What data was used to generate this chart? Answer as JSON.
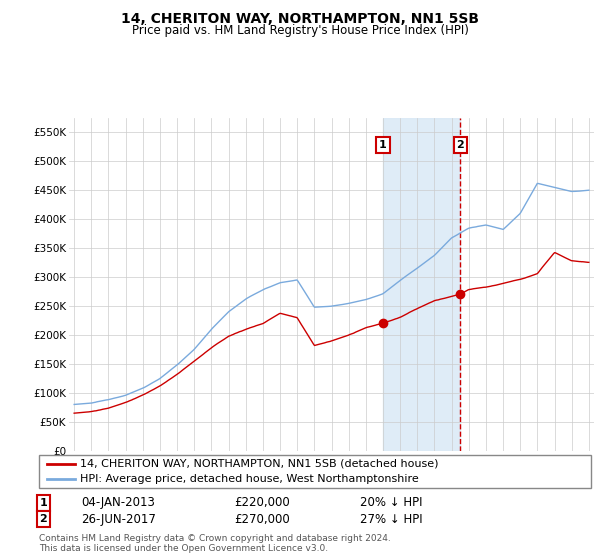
{
  "title": "14, CHERITON WAY, NORTHAMPTON, NN1 5SB",
  "subtitle": "Price paid vs. HM Land Registry's House Price Index (HPI)",
  "ylabel_ticks": [
    "£0",
    "£50K",
    "£100K",
    "£150K",
    "£200K",
    "£250K",
    "£300K",
    "£350K",
    "£400K",
    "£450K",
    "£500K",
    "£550K"
  ],
  "ytick_values": [
    0,
    50000,
    100000,
    150000,
    200000,
    250000,
    300000,
    350000,
    400000,
    450000,
    500000,
    550000
  ],
  "xlim_start": 1994.7,
  "xlim_end": 2025.3,
  "ylim_top": 575000,
  "transaction1": {
    "date_label": "04-JAN-2013",
    "price": 220000,
    "pct": "20%",
    "x": 2013.0
  },
  "transaction2": {
    "date_label": "26-JUN-2017",
    "price": 270000,
    "pct": "27%",
    "x": 2017.5
  },
  "red_line_label": "14, CHERITON WAY, NORTHAMPTON, NN1 5SB (detached house)",
  "blue_line_label": "HPI: Average price, detached house, West Northamptonshire",
  "footer1": "Contains HM Land Registry data © Crown copyright and database right 2024.",
  "footer2": "This data is licensed under the Open Government Licence v3.0.",
  "red_color": "#cc0000",
  "blue_color": "#7aaadd",
  "shade_color": "#d8e8f5",
  "background_color": "#ffffff",
  "grid_color": "#cccccc",
  "title_fontsize": 10,
  "subtitle_fontsize": 8.5,
  "tick_fontsize": 7.5,
  "legend_fontsize": 8,
  "footer_fontsize": 6.5
}
